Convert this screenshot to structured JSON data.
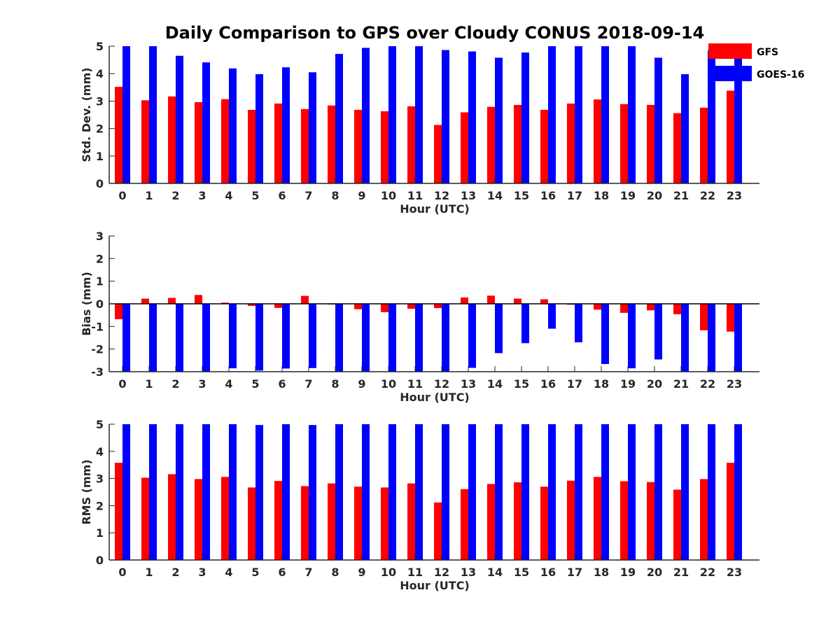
{
  "title": "Daily Comparison to GPS over Cloudy CONUS 2018-09-14",
  "colors": {
    "GFS": "#ff0000",
    "GOES-16": "#0000ff",
    "axis": "#262626"
  },
  "legend": {
    "placement": "top-right",
    "entries": [
      "GFS",
      "GOES-16"
    ]
  },
  "chart_data": [
    {
      "type": "bar",
      "ylabel": "Std. Dev. (mm)",
      "xlabel": "Hour (UTC)",
      "ylim": [
        0,
        5
      ],
      "yticks": [
        0,
        1,
        2,
        3,
        4,
        5
      ],
      "categories": [
        0,
        1,
        2,
        3,
        4,
        5,
        6,
        7,
        8,
        9,
        10,
        11,
        12,
        13,
        14,
        15,
        16,
        17,
        18,
        19,
        20,
        21,
        22,
        23
      ],
      "series": [
        {
          "name": "GFS",
          "values": [
            3.52,
            3.03,
            3.17,
            2.96,
            3.07,
            2.68,
            2.91,
            2.71,
            2.84,
            2.68,
            2.63,
            2.81,
            2.13,
            2.59,
            2.79,
            2.86,
            2.68,
            2.91,
            3.06,
            2.89,
            2.86,
            2.56,
            2.76,
            3.38
          ]
        },
        {
          "name": "GOES-16",
          "values": [
            5.0,
            5.0,
            4.65,
            4.41,
            4.19,
            3.98,
            4.23,
            4.05,
            4.72,
            4.94,
            5.0,
            5.0,
            4.86,
            4.81,
            4.58,
            4.77,
            5.0,
            5.0,
            5.0,
            5.0,
            4.58,
            3.98,
            4.85,
            4.7
          ]
        }
      ]
    },
    {
      "type": "bar",
      "ylabel": "Bias (mm)",
      "xlabel": "Hour (UTC)",
      "ylim": [
        -3,
        3
      ],
      "yticks": [
        -3,
        -2,
        -1,
        0,
        1,
        2,
        3
      ],
      "categories": [
        0,
        1,
        2,
        3,
        4,
        5,
        6,
        7,
        8,
        9,
        10,
        11,
        12,
        13,
        14,
        15,
        16,
        17,
        18,
        19,
        20,
        21,
        22,
        23
      ],
      "series": [
        {
          "name": "GFS",
          "values": [
            -0.68,
            0.23,
            0.26,
            0.39,
            0.05,
            -0.09,
            -0.18,
            0.35,
            -0.03,
            -0.24,
            -0.37,
            -0.22,
            -0.19,
            0.28,
            0.36,
            0.23,
            0.2,
            -0.04,
            -0.26,
            -0.4,
            -0.29,
            -0.46,
            -1.17,
            -1.23
          ]
        },
        {
          "name": "GOES-16",
          "values": [
            -3.0,
            -3.0,
            -3.0,
            -3.0,
            -2.85,
            -2.95,
            -2.86,
            -2.84,
            -3.0,
            -3.0,
            -3.0,
            -3.0,
            -3.0,
            -2.83,
            -2.18,
            -1.74,
            -1.1,
            -1.7,
            -2.66,
            -2.85,
            -2.46,
            -3.0,
            -3.0,
            -3.0
          ]
        }
      ]
    },
    {
      "type": "bar",
      "ylabel": "RMS (mm)",
      "xlabel": "Hour (UTC)",
      "ylim": [
        0,
        5
      ],
      "yticks": [
        0,
        1,
        2,
        3,
        4,
        5
      ],
      "categories": [
        0,
        1,
        2,
        3,
        4,
        5,
        6,
        7,
        8,
        9,
        10,
        11,
        12,
        13,
        14,
        15,
        16,
        17,
        18,
        19,
        20,
        21,
        22,
        23
      ],
      "series": [
        {
          "name": "GFS",
          "values": [
            3.58,
            3.03,
            3.16,
            2.98,
            3.06,
            2.67,
            2.91,
            2.72,
            2.82,
            2.7,
            2.67,
            2.82,
            2.12,
            2.61,
            2.8,
            2.86,
            2.7,
            2.92,
            3.06,
            2.9,
            2.87,
            2.59,
            2.98,
            3.58
          ]
        },
        {
          "name": "GOES-16",
          "values": [
            5.0,
            5.0,
            5.0,
            5.0,
            5.0,
            4.97,
            5.0,
            4.97,
            5.0,
            5.0,
            5.0,
            5.0,
            5.0,
            5.0,
            5.0,
            5.0,
            5.0,
            5.0,
            5.0,
            5.0,
            5.0,
            5.0,
            5.0,
            5.0
          ]
        }
      ]
    }
  ]
}
